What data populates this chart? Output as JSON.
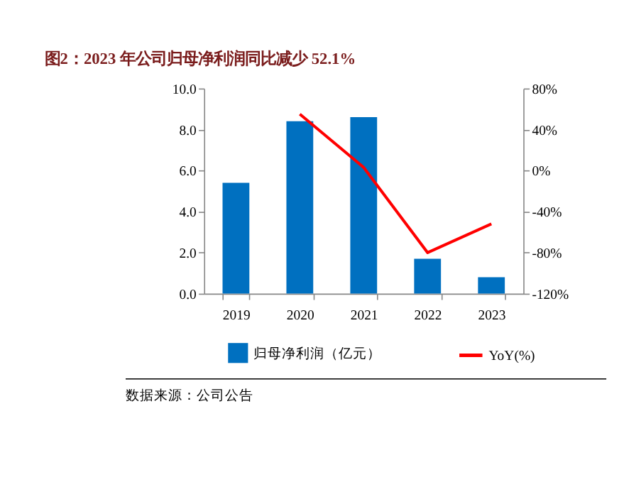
{
  "chart_data": {
    "type": "bar",
    "title": "图2：2023 年公司归母净利润同比减少 52.1%",
    "categories": [
      "2019",
      "2020",
      "2021",
      "2022",
      "2023"
    ],
    "series": [
      {
        "name": "归母净利润（亿元）",
        "color": "#0070c0",
        "values": [
          5.4,
          8.4,
          8.6,
          1.7,
          0.8
        ]
      },
      {
        "name": "YoY(%)",
        "type": "line",
        "axis": "y2",
        "color": "#ff0000",
        "values": [
          null,
          55,
          3,
          -80,
          -52
        ]
      }
    ],
    "ylim": [
      0,
      10
    ],
    "yticks": [
      {
        "value": 0,
        "label": "0.0"
      },
      {
        "value": 2,
        "label": "2.0"
      },
      {
        "value": 4,
        "label": "4.0"
      },
      {
        "value": 6,
        "label": "6.0"
      },
      {
        "value": 8,
        "label": "8.0"
      },
      {
        "value": 10,
        "label": "10.0"
      }
    ],
    "y2lim": [
      -120,
      80
    ],
    "y2ticks": [
      {
        "value": -120,
        "label": "-120%"
      },
      {
        "value": -80,
        "label": "-80%"
      },
      {
        "value": -40,
        "label": "-40%"
      },
      {
        "value": 0,
        "label": "0%"
      },
      {
        "value": 40,
        "label": "40%"
      },
      {
        "value": 80,
        "label": "80%"
      }
    ],
    "grid": false,
    "legend": "bottom",
    "marker": "none",
    "line_style": "solid",
    "annotations": [
      "数据来源：公司公告"
    ]
  }
}
